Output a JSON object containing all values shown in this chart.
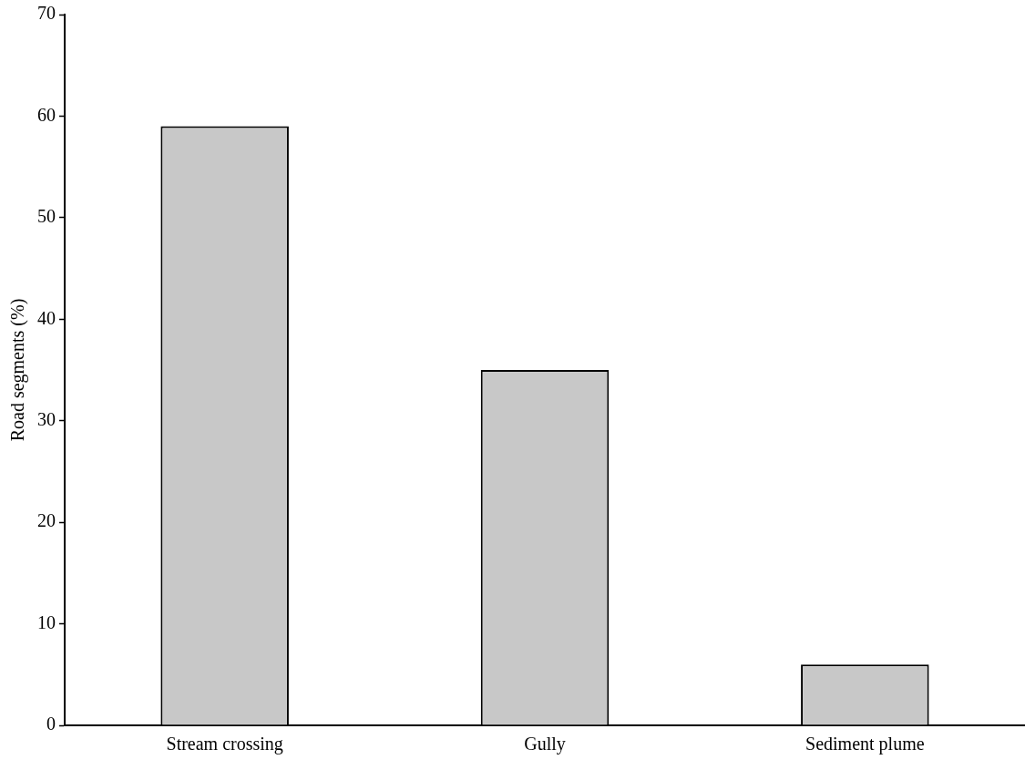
{
  "chart_data": {
    "type": "bar",
    "ylabel": "Road segments (%)",
    "categories": [
      "Stream crossing",
      "Gully",
      "Sediment plume"
    ],
    "values": [
      59,
      35,
      6
    ],
    "color": "#c8c8c8",
    "ylim": [
      0,
      70
    ],
    "yticks": [
      0,
      10,
      20,
      30,
      40,
      50,
      60,
      70
    ],
    "grid": false,
    "legend": false
  }
}
